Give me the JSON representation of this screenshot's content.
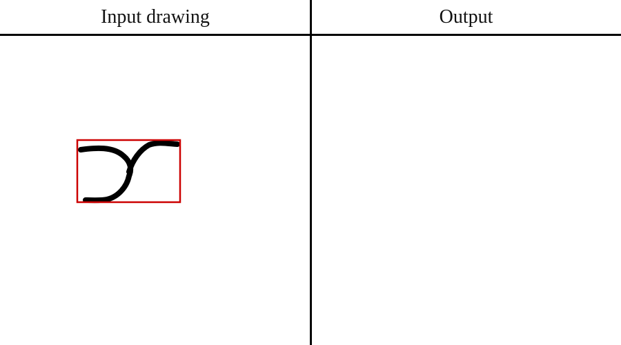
{
  "panels": {
    "input": {
      "title": "Input drawing"
    },
    "output": {
      "title": "Output"
    }
  },
  "drawing": {
    "stroke_color": "#000000",
    "bounding_box_color": "#cc0000"
  }
}
